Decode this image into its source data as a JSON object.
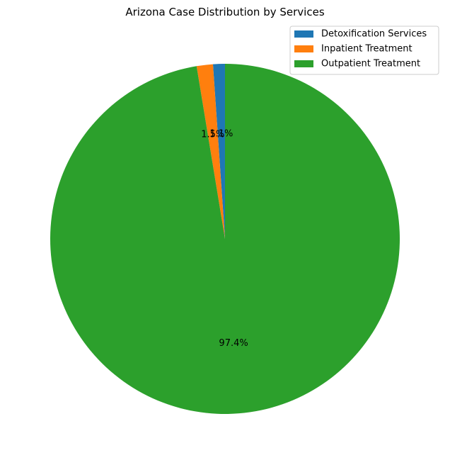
{
  "chart_data": {
    "type": "pie",
    "title": "Arizona Case Distribution by Services",
    "start_angle_deg": 90,
    "direction": "counterclockwise",
    "legend_position": "top-right",
    "slices": [
      {
        "label": "Detoxification Services",
        "value": 1.1,
        "pct_label": "1.1%",
        "color": "#1f77b4"
      },
      {
        "label": "Inpatient Treatment",
        "value": 1.5,
        "pct_label": "1.5%",
        "color": "#ff7f0e"
      },
      {
        "label": "Outpatient Treatment",
        "value": 97.4,
        "pct_label": "97.4%",
        "color": "#2ca02c"
      }
    ]
  }
}
